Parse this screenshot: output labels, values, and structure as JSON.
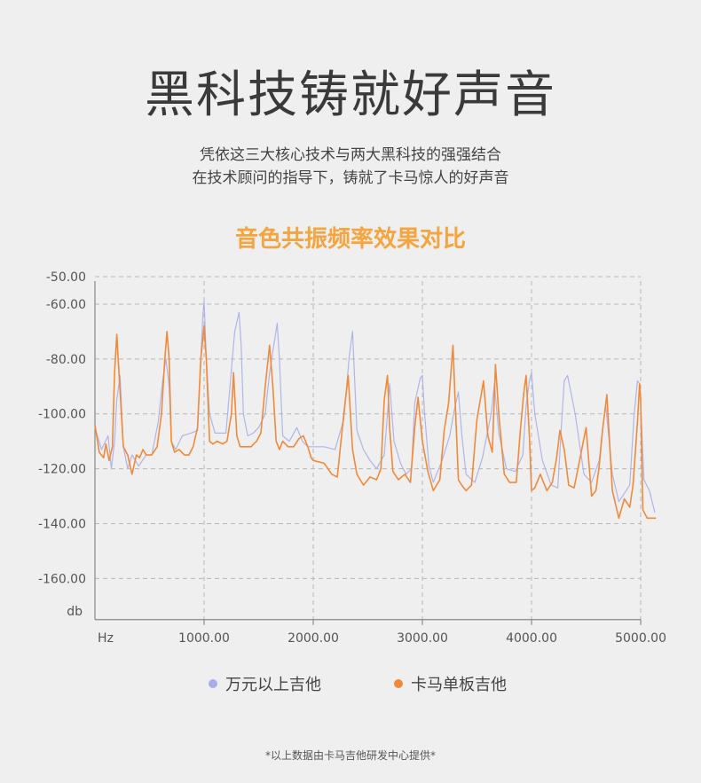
{
  "headline": "黑科技铸就好声音",
  "intro": {
    "line1": "凭依这三大核心技术与两大黑科技的强强结合",
    "line2": "在技术顾问的指导下，铸就了卡马惊人的好声音"
  },
  "footnote": "*以上数据由卡马吉他研发中心提供*",
  "colors": {
    "background": "#efefef",
    "accent_title": "#f5a43f",
    "series_premium": "#a9aee8",
    "series_kama": "#f08a3a",
    "grid": "#b8b8b8"
  },
  "chart_data": {
    "type": "line",
    "title": "音色共振频率效果对比",
    "xlabel": "Hz",
    "ylabel": "db",
    "xlim": [
      0,
      5150
    ],
    "ylim": [
      -175,
      -50
    ],
    "xticks": [
      1000,
      2000,
      3000,
      4000,
      5000
    ],
    "xtick_labels": [
      "1000.00",
      "2000.00",
      "3000.00",
      "4000.00",
      "5000.00"
    ],
    "yticks": [
      -50,
      -60,
      -80,
      -100,
      -120,
      -140,
      -160
    ],
    "ytick_labels": [
      "-50.00",
      "-60.00",
      "-80.00",
      "-100.00",
      "-120.00",
      "-140.00",
      "-160.00"
    ],
    "grid": true,
    "legend_position": "bottom",
    "series": [
      {
        "name": "万元以上吉他",
        "color": "#a9aee8",
        "x": [
          0,
          60,
          120,
          150,
          180,
          200,
          230,
          260,
          300,
          340,
          400,
          470,
          520,
          580,
          620,
          650,
          680,
          700,
          740,
          800,
          880,
          940,
          970,
          990,
          1000,
          1020,
          1050,
          1100,
          1150,
          1200,
          1250,
          1280,
          1320,
          1340,
          1360,
          1400,
          1450,
          1500,
          1560,
          1600,
          1650,
          1670,
          1690,
          1720,
          1780,
          1850,
          1900,
          1950,
          2000,
          2100,
          2200,
          2280,
          2330,
          2360,
          2400,
          2460,
          2520,
          2580,
          2650,
          2680,
          2700,
          2740,
          2800,
          2850,
          2900,
          2930,
          2980,
          3000,
          3020,
          3060,
          3100,
          3180,
          3250,
          3290,
          3330,
          3360,
          3400,
          3480,
          3550,
          3630,
          3660,
          3700,
          3770,
          3850,
          3920,
          3950,
          3980,
          4000,
          4030,
          4100,
          4180,
          4240,
          4280,
          4300,
          4330,
          4400,
          4480,
          4550,
          4620,
          4650,
          4680,
          4740,
          4800,
          4850,
          4900,
          4940,
          4970,
          4990,
          5000,
          5030,
          5080,
          5130
        ],
        "y": [
          -105,
          -113,
          -108,
          -120,
          -110,
          -95,
          -86,
          -112,
          -120,
          -115,
          -119,
          -115,
          -115,
          -103,
          -88,
          -80,
          -90,
          -110,
          -113,
          -108,
          -107,
          -106,
          -80,
          -63,
          -59,
          -80,
          -100,
          -107,
          -107,
          -107,
          -84,
          -70,
          -63,
          -75,
          -100,
          -108,
          -107,
          -105,
          -100,
          -85,
          -72,
          -67,
          -80,
          -108,
          -110,
          -105,
          -110,
          -112,
          -112,
          -112,
          -113,
          -102,
          -79,
          -70,
          -106,
          -113,
          -117,
          -120,
          -115,
          -100,
          -89,
          -110,
          -118,
          -122,
          -120,
          -96,
          -87,
          -86,
          -100,
          -119,
          -125,
          -117,
          -108,
          -99,
          -92,
          -107,
          -122,
          -125,
          -116,
          -100,
          -89,
          -107,
          -120,
          -121,
          -115,
          -97,
          -88,
          -85,
          -100,
          -117,
          -126,
          -127,
          -100,
          -88,
          -86,
          -100,
          -122,
          -125,
          -117,
          -106,
          -97,
          -122,
          -132,
          -129,
          -126,
          -100,
          -88,
          -89,
          -96,
          -124,
          -128,
          -136
        ]
      },
      {
        "name": "卡马单板吉他",
        "color": "#f08a3a",
        "x": [
          0,
          40,
          80,
          100,
          130,
          160,
          180,
          200,
          220,
          260,
          300,
          340,
          380,
          410,
          440,
          470,
          520,
          570,
          610,
          640,
          660,
          680,
          700,
          730,
          770,
          820,
          860,
          900,
          940,
          970,
          1000,
          1020,
          1050,
          1080,
          1120,
          1170,
          1210,
          1250,
          1270,
          1300,
          1330,
          1380,
          1430,
          1480,
          1520,
          1560,
          1600,
          1630,
          1660,
          1690,
          1720,
          1770,
          1820,
          1870,
          1910,
          1950,
          1980,
          2000,
          2100,
          2170,
          2220,
          2280,
          2320,
          2360,
          2400,
          2460,
          2520,
          2580,
          2620,
          2650,
          2680,
          2700,
          2730,
          2780,
          2840,
          2890,
          2930,
          2960,
          3000,
          3050,
          3100,
          3160,
          3200,
          3240,
          3280,
          3300,
          3330,
          3360,
          3400,
          3450,
          3500,
          3560,
          3600,
          3640,
          3670,
          3700,
          3750,
          3800,
          3860,
          3900,
          3930,
          3950,
          3980,
          4000,
          4030,
          4080,
          4140,
          4190,
          4230,
          4260,
          4300,
          4340,
          4390,
          4450,
          4500,
          4550,
          4590,
          4620,
          4650,
          4690,
          4740,
          4800,
          4850,
          4900,
          4930,
          4970,
          4990,
          5000,
          5020,
          5060,
          5100,
          5140
        ],
        "y": [
          -104,
          -114,
          -116,
          -111,
          -117,
          -112,
          -85,
          -71,
          -85,
          -112,
          -115,
          -122,
          -115,
          -116,
          -113,
          -115,
          -115,
          -112,
          -100,
          -80,
          -70,
          -80,
          -110,
          -114,
          -113,
          -115,
          -115,
          -112,
          -105,
          -80,
          -68,
          -80,
          -110,
          -111,
          -110,
          -111,
          -110,
          -100,
          -85,
          -108,
          -112,
          -112,
          -112,
          -110,
          -107,
          -90,
          -75,
          -90,
          -110,
          -113,
          -110,
          -112,
          -112,
          -109,
          -108,
          -112,
          -116,
          -117,
          -118,
          -122,
          -123,
          -100,
          -86,
          -113,
          -122,
          -126,
          -123,
          -124,
          -120,
          -95,
          -86,
          -105,
          -121,
          -124,
          -122,
          -125,
          -105,
          -94,
          -110,
          -121,
          -128,
          -124,
          -106,
          -96,
          -75,
          -95,
          -124,
          -126,
          -128,
          -126,
          -102,
          -88,
          -108,
          -114,
          -82,
          -100,
          -122,
          -125,
          -125,
          -105,
          -92,
          -86,
          -108,
          -128,
          -127,
          -122,
          -128,
          -125,
          -116,
          -106,
          -113,
          -126,
          -127,
          -115,
          -105,
          -130,
          -128,
          -119,
          -106,
          -93,
          -128,
          -138,
          -131,
          -134,
          -126,
          -103,
          -89,
          -95,
          -135,
          -138,
          -138,
          -138
        ]
      }
    ]
  }
}
